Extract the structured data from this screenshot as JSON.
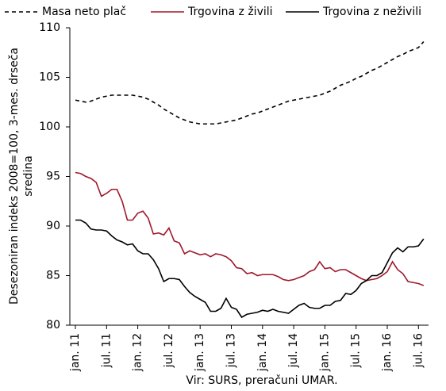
{
  "chart_data": {
    "type": "line",
    "y_label_lines": [
      "Desezoniran indeks 2008=100, 3-mes. drseča",
      "sredina"
    ],
    "source": "Vir: SURS, preračuni UMAR.",
    "categories": [
      "jan. 11",
      null,
      null,
      null,
      null,
      null,
      "jul. 11",
      null,
      null,
      null,
      null,
      null,
      "jan. 12",
      null,
      null,
      null,
      null,
      null,
      "jul. 12",
      null,
      null,
      null,
      null,
      null,
      "jan. 13",
      null,
      null,
      null,
      null,
      null,
      "jul. 13",
      null,
      null,
      null,
      null,
      null,
      "jan. 14",
      null,
      null,
      null,
      null,
      null,
      "jul. 14",
      null,
      null,
      null,
      null,
      null,
      "jan. 15",
      null,
      null,
      null,
      null,
      null,
      "jul. 15",
      null,
      null,
      null,
      null,
      null,
      "jan. 16",
      null,
      null,
      null,
      null,
      null,
      "jul. 16",
      null
    ],
    "ylim": [
      80,
      110
    ],
    "yticks": [
      80,
      85,
      90,
      95,
      100,
      105,
      110
    ],
    "grid": false,
    "series": [
      {
        "name": "Masa neto plač",
        "color": "#000000",
        "dashed": true,
        "values": [
          102.7,
          102.6,
          102.5,
          102.6,
          102.8,
          103.0,
          103.1,
          103.2,
          103.2,
          103.2,
          103.2,
          103.2,
          103.1,
          103.0,
          102.8,
          102.5,
          102.2,
          101.8,
          101.5,
          101.2,
          100.9,
          100.7,
          100.5,
          100.4,
          100.3,
          100.3,
          100.3,
          100.3,
          100.4,
          100.5,
          100.6,
          100.7,
          100.9,
          101.1,
          101.3,
          101.4,
          101.6,
          101.8,
          102.0,
          102.2,
          102.4,
          102.6,
          102.7,
          102.8,
          102.9,
          103.0,
          103.1,
          103.2,
          103.4,
          103.6,
          103.9,
          104.2,
          104.4,
          104.6,
          104.9,
          105.1,
          105.4,
          105.7,
          105.9,
          106.2,
          106.5,
          106.8,
          107.1,
          107.3,
          107.6,
          107.8,
          108.0,
          108.6
        ]
      },
      {
        "name": "Trgovina z živili",
        "color": "#a0182c",
        "dashed": false,
        "values": [
          95.4,
          95.3,
          95.0,
          94.8,
          94.4,
          93.0,
          93.3,
          93.7,
          93.7,
          92.5,
          90.6,
          90.6,
          91.3,
          91.5,
          90.8,
          89.2,
          89.3,
          89.1,
          89.8,
          88.5,
          88.3,
          87.2,
          87.5,
          87.3,
          87.1,
          87.2,
          86.9,
          87.2,
          87.1,
          86.9,
          86.5,
          85.8,
          85.7,
          85.2,
          85.3,
          85.0,
          85.1,
          85.1,
          85.1,
          84.9,
          84.6,
          84.5,
          84.6,
          84.8,
          85.0,
          85.4,
          85.6,
          86.4,
          85.7,
          85.8,
          85.4,
          85.6,
          85.6,
          85.3,
          85.0,
          84.7,
          84.5,
          84.6,
          84.7,
          85.0,
          85.4,
          86.4,
          85.6,
          85.2,
          84.4,
          84.3,
          84.2,
          84.0
        ]
      },
      {
        "name": "Trgovina z neživili",
        "color": "#000000",
        "dashed": false,
        "values": [
          90.6,
          90.6,
          90.3,
          89.7,
          89.6,
          89.6,
          89.5,
          89.0,
          88.6,
          88.4,
          88.1,
          88.2,
          87.5,
          87.2,
          87.2,
          86.6,
          85.7,
          84.4,
          84.7,
          84.7,
          84.6,
          83.9,
          83.3,
          82.9,
          82.6,
          82.3,
          81.4,
          81.4,
          81.7,
          82.7,
          81.8,
          81.6,
          80.8,
          81.1,
          81.2,
          81.3,
          81.5,
          81.4,
          81.6,
          81.4,
          81.3,
          81.2,
          81.6,
          82.0,
          82.2,
          81.8,
          81.7,
          81.7,
          82.0,
          82.0,
          82.4,
          82.5,
          83.2,
          83.1,
          83.5,
          84.2,
          84.5,
          85.0,
          85.0,
          85.3,
          86.3,
          87.3,
          87.8,
          87.4,
          87.9,
          87.9,
          88.0,
          88.7
        ]
      }
    ]
  }
}
